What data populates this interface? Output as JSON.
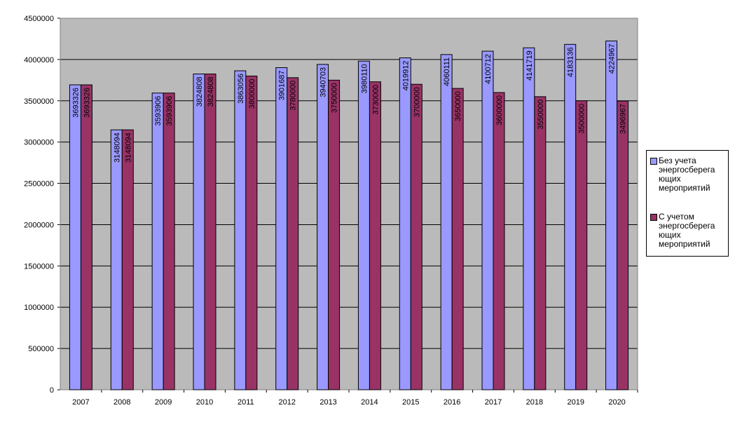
{
  "chart_data": {
    "type": "bar",
    "title": "",
    "xlabel": "",
    "ylabel": "",
    "categories": [
      "2007",
      "2008",
      "2009",
      "2010",
      "2011",
      "2012",
      "2013",
      "2014",
      "2015",
      "2016",
      "2017",
      "2018",
      "2019",
      "2020"
    ],
    "series": [
      {
        "name": "Без учета энергосберегающих мероприятий",
        "color": "#9999ff",
        "values": [
          3693326,
          3148094,
          3593906,
          3824808,
          3863056,
          3901687,
          3940703,
          3980110,
          4019912,
          4060111,
          4100712,
          4141719,
          4183136,
          4224967
        ],
        "labels": [
          "3693326",
          "3148094",
          "3593906",
          "3824808",
          "3863056",
          "3901687",
          "3940703",
          "3980110",
          "4019912",
          "4060111",
          "4100712",
          "4141719",
          "4183136",
          "4224967"
        ]
      },
      {
        "name": "С учетом энергосберегающих мероприятий",
        "color": "#993366",
        "values": [
          3693326,
          3148094,
          3593906,
          3824808,
          3800000,
          3780000,
          3750000,
          3730000,
          3700000,
          3650000,
          3600000,
          3550000,
          3500000,
          3496967
        ],
        "labels": [
          "3693326",
          "3148094",
          "3593906",
          "3824808",
          "3800000",
          "3780000",
          "3750000",
          "3730000",
          "3700000",
          "3650000",
          "3600000",
          "3550000",
          "3500000",
          "3496967"
        ]
      }
    ],
    "ylim": [
      0,
      4500000
    ],
    "yticks": [
      0,
      500000,
      1000000,
      1500000,
      2000000,
      2500000,
      3000000,
      3500000,
      4000000,
      4500000
    ],
    "ytick_labels": [
      "0",
      "500000",
      "1000000",
      "1500000",
      "2000000",
      "2500000",
      "3000000",
      "3500000",
      "4000000",
      "4500000"
    ],
    "grid": true,
    "plot_background": "#c0c0c0",
    "legend_position": "right",
    "legend_lines": [
      [
        "Без учета",
        "энергосберега",
        "ющих",
        "мероприятий"
      ],
      [
        "С учетом",
        "энергосберега",
        "ющих",
        "мероприятий"
      ]
    ]
  }
}
